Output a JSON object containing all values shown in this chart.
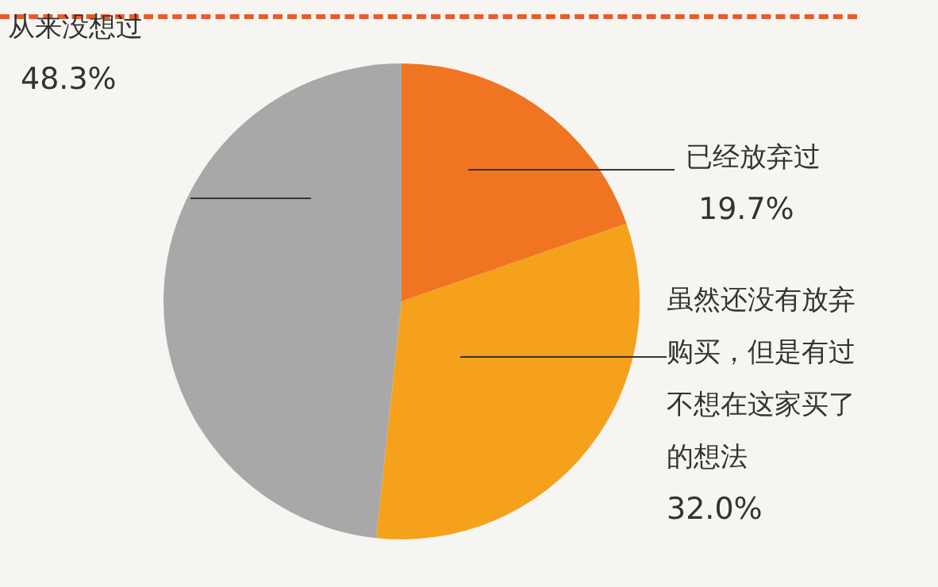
{
  "chart_data": {
    "type": "pie",
    "categories": [
      "已经放弃过",
      "虽然还没有放弃购买，但是有过不想在这家买了的想法",
      "从来没想过"
    ],
    "values": [
      19.7,
      32.0,
      48.3
    ],
    "colors": [
      "#f07522",
      "#f5a11c",
      "#a9a8a8"
    ],
    "value_labels": [
      "19.7%",
      "32.0%",
      "48.3%"
    ],
    "legend": false
  }
}
